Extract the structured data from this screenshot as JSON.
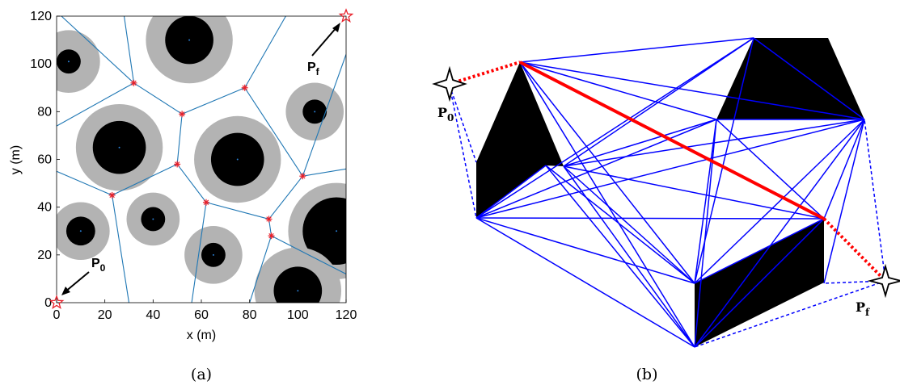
{
  "panel_a": {
    "caption": "(a)",
    "xlabel": "x (m)",
    "ylabel": "y (m)",
    "xlim": [
      0,
      120
    ],
    "ylim": [
      0,
      120
    ],
    "xticks": [
      "0",
      "20",
      "40",
      "60",
      "80",
      "100",
      "120"
    ],
    "yticks": [
      "0",
      "20",
      "40",
      "60",
      "80",
      "100",
      "120"
    ],
    "start_label": "P",
    "start_sub": "0",
    "goal_label": "P",
    "goal_sub": "f",
    "start": [
      0,
      0
    ],
    "goal": [
      120,
      120
    ],
    "colors": {
      "obstacle_outer": "#b3b3b3",
      "obstacle_inner": "#000000",
      "voronoi": "#1f77b4",
      "vertex": "#e8202a",
      "marker": "#e8202a"
    },
    "obstacles": [
      {
        "x": 5,
        "y": 101,
        "r_outer": 13,
        "r_inner": 5
      },
      {
        "x": 55,
        "y": 110,
        "r_outer": 18,
        "r_inner": 10
      },
      {
        "x": 107,
        "y": 80,
        "r_outer": 12,
        "r_inner": 5
      },
      {
        "x": 26,
        "y": 65,
        "r_outer": 18,
        "r_inner": 11
      },
      {
        "x": 75,
        "y": 60,
        "r_outer": 18,
        "r_inner": 11
      },
      {
        "x": 10,
        "y": 30,
        "r_outer": 12,
        "r_inner": 6
      },
      {
        "x": 40,
        "y": 35,
        "r_outer": 11,
        "r_inner": 5
      },
      {
        "x": 65,
        "y": 20,
        "r_outer": 12,
        "r_inner": 5
      },
      {
        "x": 116,
        "y": 30,
        "r_outer": 20,
        "r_inner": 14
      },
      {
        "x": 100,
        "y": 5,
        "r_outer": 18,
        "r_inner": 10
      }
    ],
    "voronoi_vertices": [
      [
        32,
        92
      ],
      [
        78,
        90
      ],
      [
        52,
        79
      ],
      [
        50,
        58
      ],
      [
        102,
        53
      ],
      [
        23,
        45
      ],
      [
        62,
        42
      ],
      [
        88,
        35
      ],
      [
        89,
        28
      ]
    ],
    "voronoi_edges": [
      [
        [
          0,
          74
        ],
        [
          32,
          92
        ]
      ],
      [
        [
          28,
          120
        ],
        [
          32,
          92
        ]
      ],
      [
        [
          32,
          92
        ],
        [
          52,
          79
        ]
      ],
      [
        [
          52,
          79
        ],
        [
          78,
          90
        ]
      ],
      [
        [
          78,
          90
        ],
        [
          95,
          120
        ]
      ],
      [
        [
          78,
          90
        ],
        [
          102,
          53
        ]
      ],
      [
        [
          52,
          79
        ],
        [
          50,
          58
        ]
      ],
      [
        [
          50,
          58
        ],
        [
          23,
          45
        ]
      ],
      [
        [
          23,
          45
        ],
        [
          0,
          55
        ]
      ],
      [
        [
          23,
          45
        ],
        [
          30,
          0
        ]
      ],
      [
        [
          50,
          58
        ],
        [
          62,
          42
        ]
      ],
      [
        [
          62,
          42
        ],
        [
          88,
          35
        ]
      ],
      [
        [
          62,
          42
        ],
        [
          56,
          0
        ]
      ],
      [
        [
          88,
          35
        ],
        [
          102,
          53
        ]
      ],
      [
        [
          102,
          53
        ],
        [
          120,
          56
        ]
      ],
      [
        [
          88,
          35
        ],
        [
          89,
          28
        ]
      ],
      [
        [
          89,
          28
        ],
        [
          120,
          12
        ]
      ],
      [
        [
          89,
          28
        ],
        [
          80,
          0
        ]
      ],
      [
        [
          2,
          120
        ],
        [
          32,
          92
        ]
      ],
      [
        [
          120,
          104
        ],
        [
          102,
          53
        ]
      ]
    ]
  },
  "panel_b": {
    "caption": "(b)",
    "start_label": "P",
    "start_sub": "0",
    "goal_label": "P",
    "goal_sub": "f",
    "colors": {
      "edge": "#0000ff",
      "path": "#ff0000",
      "obstacle": "#000000"
    }
  }
}
